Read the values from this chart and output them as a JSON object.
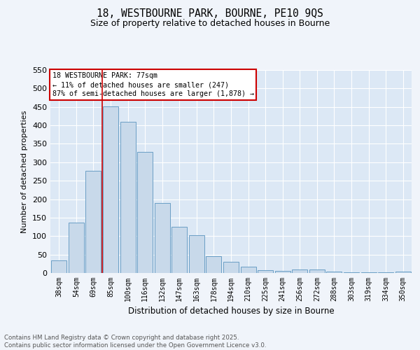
{
  "title": "18, WESTBOURNE PARK, BOURNE, PE10 9QS",
  "subtitle": "Size of property relative to detached houses in Bourne",
  "xlabel": "Distribution of detached houses by size in Bourne",
  "ylabel": "Number of detached properties",
  "bar_color": "#c8d9ea",
  "bar_edge_color": "#6a9ec5",
  "background_color": "#dce8f5",
  "fig_background": "#f0f4fa",
  "categories": [
    "38sqm",
    "54sqm",
    "69sqm",
    "85sqm",
    "100sqm",
    "116sqm",
    "132sqm",
    "147sqm",
    "163sqm",
    "178sqm",
    "194sqm",
    "210sqm",
    "225sqm",
    "241sqm",
    "256sqm",
    "272sqm",
    "288sqm",
    "303sqm",
    "319sqm",
    "334sqm",
    "350sqm"
  ],
  "values": [
    35,
    137,
    277,
    451,
    409,
    328,
    190,
    125,
    102,
    46,
    31,
    18,
    8,
    5,
    9,
    9,
    3,
    2,
    1,
    1,
    3
  ],
  "ylim": [
    0,
    550
  ],
  "yticks": [
    0,
    50,
    100,
    150,
    200,
    250,
    300,
    350,
    400,
    450,
    500,
    550
  ],
  "vline_color": "#cc0000",
  "annotation_text": "18 WESTBOURNE PARK: 77sqm\n← 11% of detached houses are smaller (247)\n87% of semi-detached houses are larger (1,878) →",
  "annotation_box_color": "#ffffff",
  "annotation_box_edge": "#cc0000",
  "footer_line1": "Contains HM Land Registry data © Crown copyright and database right 2025.",
  "footer_line2": "Contains public sector information licensed under the Open Government Licence v3.0."
}
